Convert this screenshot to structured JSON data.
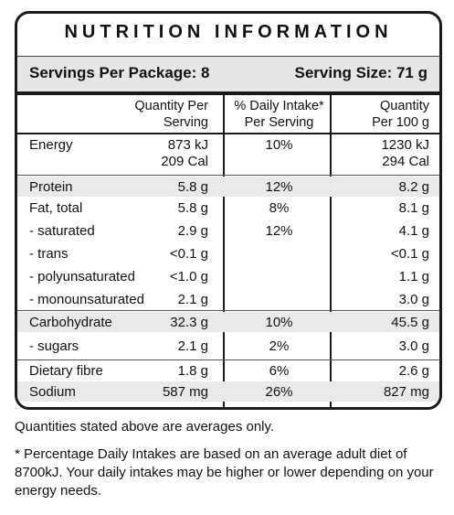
{
  "panel": {
    "title": "NUTRITION INFORMATION",
    "servings_per_package": "Servings Per Package: 8",
    "serving_size": "Serving Size: 71 g"
  },
  "headers": {
    "qty_per_serving_1": "Quantity Per",
    "qty_per_serving_2": "Serving",
    "daily_intake_1": "% Daily Intake*",
    "daily_intake_2": "Per Serving",
    "qty_per_100_1": "Quantity",
    "qty_per_100_2": "Per 100 g"
  },
  "rows": [
    {
      "label": "Energy",
      "qty": "873 kJ",
      "qty2": "209 Cal",
      "dv": "10%",
      "per100": "1230 kJ",
      "per100_2": "294 Cal"
    },
    {
      "label": "Protein",
      "qty": "5.8 g",
      "dv": "12%",
      "per100": "8.2 g"
    },
    {
      "label": "Fat, total",
      "qty": "5.8 g",
      "dv": "8%",
      "per100": "8.1 g"
    },
    {
      "label": "- saturated",
      "qty": "2.9 g",
      "dv": "12%",
      "per100": "4.1 g"
    },
    {
      "label": "- trans",
      "qty": "<0.1 g",
      "dv": "",
      "per100": "<0.1 g"
    },
    {
      "label": "- polyunsaturated",
      "qty": "<1.0 g",
      "dv": "",
      "per100": "1.1 g"
    },
    {
      "label": "- monounsaturated",
      "qty": "2.1 g",
      "dv": "",
      "per100": "3.0 g"
    },
    {
      "label": "Carbohydrate",
      "qty": "32.3 g",
      "dv": "10%",
      "per100": "45.5 g"
    },
    {
      "label": "- sugars",
      "qty": "2.1 g",
      "dv": "2%",
      "per100": "3.0 g"
    },
    {
      "label": "Dietary fibre",
      "qty": "1.8 g",
      "dv": "6%",
      "per100": "2.6 g"
    },
    {
      "label": "Sodium",
      "qty": "587 mg",
      "dv": "26%",
      "per100": "827 mg"
    }
  ],
  "notes": {
    "averages": "Quantities stated above are averages only.",
    "footnote": "* Percentage Daily Intakes are based on an average adult diet of 8700kJ. Your daily intakes may be higher or lower depending on your energy needs."
  }
}
